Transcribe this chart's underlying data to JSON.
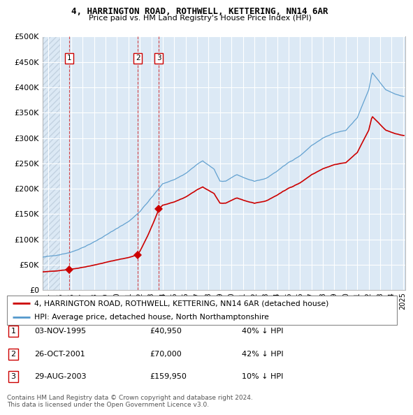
{
  "title": "4, HARRINGTON ROAD, ROTHWELL, KETTERING, NN14 6AR",
  "subtitle": "Price paid vs. HM Land Registry's House Price Index (HPI)",
  "ylim": [
    0,
    500000
  ],
  "yticks": [
    0,
    50000,
    100000,
    150000,
    200000,
    250000,
    300000,
    350000,
    400000,
    450000,
    500000
  ],
  "ytick_labels": [
    "£0",
    "£50K",
    "£100K",
    "£150K",
    "£200K",
    "£250K",
    "£300K",
    "£350K",
    "£400K",
    "£450K",
    "£500K"
  ],
  "background_color": "#ffffff",
  "plot_bg_color": "#dce9f5",
  "grid_color": "#ffffff",
  "transactions": [
    {
      "num": 1,
      "date": "03-NOV-1995",
      "price": 40950,
      "pct": "40% ↓ HPI",
      "x_year": 1995.84
    },
    {
      "num": 2,
      "date": "26-OCT-2001",
      "price": 70000,
      "pct": "42% ↓ HPI",
      "x_year": 2001.82
    },
    {
      "num": 3,
      "date": "29-AUG-2003",
      "price": 159950,
      "pct": "10% ↓ HPI",
      "x_year": 2003.66
    }
  ],
  "legend_property": "4, HARRINGTON ROAD, ROTHWELL, KETTERING, NN14 6AR (detached house)",
  "legend_hpi": "HPI: Average price, detached house, North Northamptonshire",
  "copyright": "Contains HM Land Registry data © Crown copyright and database right 2024.\nThis data is licensed under the Open Government Licence v3.0.",
  "property_line_color": "#cc0000",
  "hpi_line_color": "#5599cc",
  "transaction_vline_color": "#cc0000",
  "marker_color": "#cc0000",
  "xlim": [
    1993.5,
    2025.2
  ],
  "xticks": [
    1994,
    1995,
    1996,
    1997,
    1998,
    1999,
    2000,
    2001,
    2002,
    2003,
    2004,
    2005,
    2006,
    2007,
    2008,
    2009,
    2010,
    2011,
    2012,
    2013,
    2014,
    2015,
    2016,
    2017,
    2018,
    2019,
    2020,
    2021,
    2022,
    2023,
    2024,
    2025
  ]
}
